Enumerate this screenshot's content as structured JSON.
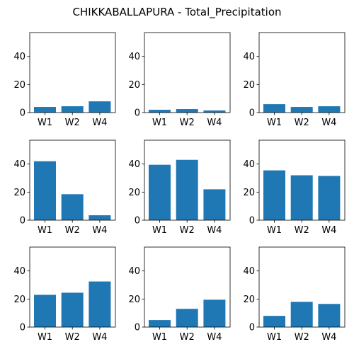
{
  "figure": {
    "title": "CHIKKABALLAPURA - Total_Precipitation"
  },
  "chart_data": [
    {
      "type": "bar",
      "title": "",
      "xlabel": "",
      "ylabel": "",
      "categories": [
        "W1",
        "W2",
        "W4"
      ],
      "values": [
        4.0,
        4.5,
        8.0
      ],
      "ylim": [
        0,
        57
      ],
      "yticks": [
        0,
        20,
        40
      ],
      "bar_color": "#1f77b4",
      "grid": false
    },
    {
      "type": "bar",
      "title": "",
      "xlabel": "",
      "ylabel": "",
      "categories": [
        "W1",
        "W2",
        "W4"
      ],
      "values": [
        2.0,
        2.5,
        1.5
      ],
      "ylim": [
        0,
        57
      ],
      "yticks": [
        0,
        20,
        40
      ],
      "bar_color": "#1f77b4",
      "grid": false
    },
    {
      "type": "bar",
      "title": "",
      "xlabel": "",
      "ylabel": "",
      "categories": [
        "W1",
        "W2",
        "W4"
      ],
      "values": [
        6.0,
        4.0,
        4.5
      ],
      "ylim": [
        0,
        57
      ],
      "yticks": [
        0,
        20,
        40
      ],
      "bar_color": "#1f77b4",
      "grid": false
    },
    {
      "type": "bar",
      "title": "",
      "xlabel": "",
      "ylabel": "",
      "categories": [
        "W1",
        "W2",
        "W4"
      ],
      "values": [
        42.0,
        18.5,
        3.5
      ],
      "ylim": [
        0,
        57
      ],
      "yticks": [
        0,
        20,
        40
      ],
      "bar_color": "#1f77b4",
      "grid": false
    },
    {
      "type": "bar",
      "title": "",
      "xlabel": "",
      "ylabel": "",
      "categories": [
        "W1",
        "W2",
        "W4"
      ],
      "values": [
        39.5,
        43.0,
        22.0
      ],
      "ylim": [
        0,
        57
      ],
      "yticks": [
        0,
        20,
        40
      ],
      "bar_color": "#1f77b4",
      "grid": false
    },
    {
      "type": "bar",
      "title": "",
      "xlabel": "",
      "ylabel": "",
      "categories": [
        "W1",
        "W2",
        "W4"
      ],
      "values": [
        35.5,
        32.0,
        31.5
      ],
      "ylim": [
        0,
        57
      ],
      "yticks": [
        0,
        20,
        40
      ],
      "bar_color": "#1f77b4",
      "grid": false
    },
    {
      "type": "bar",
      "title": "",
      "xlabel": "",
      "ylabel": "",
      "categories": [
        "W1",
        "W2",
        "W4"
      ],
      "values": [
        23.0,
        24.5,
        32.5
      ],
      "ylim": [
        0,
        57
      ],
      "yticks": [
        0,
        20,
        40
      ],
      "bar_color": "#1f77b4",
      "grid": false
    },
    {
      "type": "bar",
      "title": "",
      "xlabel": "",
      "ylabel": "",
      "categories": [
        "W1",
        "W2",
        "W4"
      ],
      "values": [
        5.0,
        13.0,
        19.5
      ],
      "ylim": [
        0,
        57
      ],
      "yticks": [
        0,
        20,
        40
      ],
      "bar_color": "#1f77b4",
      "grid": false
    },
    {
      "type": "bar",
      "title": "",
      "xlabel": "",
      "ylabel": "",
      "categories": [
        "W1",
        "W2",
        "W4"
      ],
      "values": [
        8.0,
        18.0,
        16.5
      ],
      "ylim": [
        0,
        57
      ],
      "yticks": [
        0,
        20,
        40
      ],
      "bar_color": "#1f77b4",
      "grid": false
    }
  ]
}
